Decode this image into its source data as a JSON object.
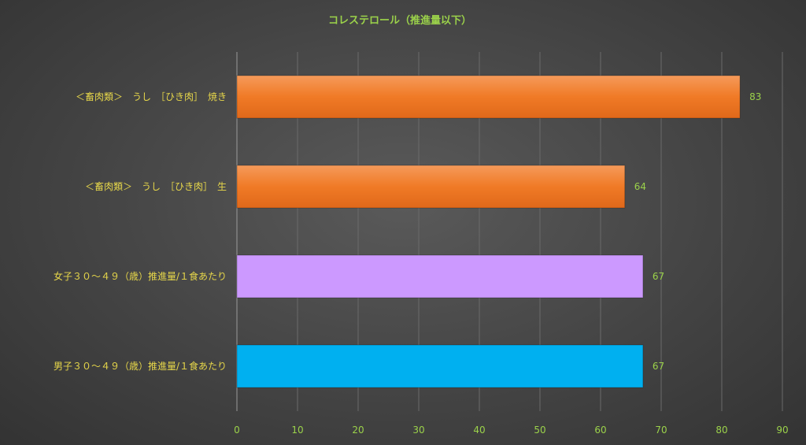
{
  "chart_data": {
    "type": "bar",
    "orientation": "horizontal",
    "title": "コレステロール（推進量以下）",
    "categories": [
      "＜畜肉類＞　うし　［ひき肉］　焼き",
      "＜畜肉類＞　うし　［ひき肉］　生",
      "女子３０～４９（歳）推進量/１食あたり",
      "男子３０～４９（歳）推進量/１食あたり"
    ],
    "values": [
      83,
      64,
      67,
      67
    ],
    "colors": [
      "#f07a26",
      "#f07a26",
      "#cc99ff",
      "#00b0f0"
    ],
    "xlim": [
      0,
      90
    ],
    "xticks": [
      0,
      10,
      20,
      30,
      40,
      50,
      60,
      70,
      80,
      90
    ],
    "grid": true,
    "data_labels": true
  }
}
